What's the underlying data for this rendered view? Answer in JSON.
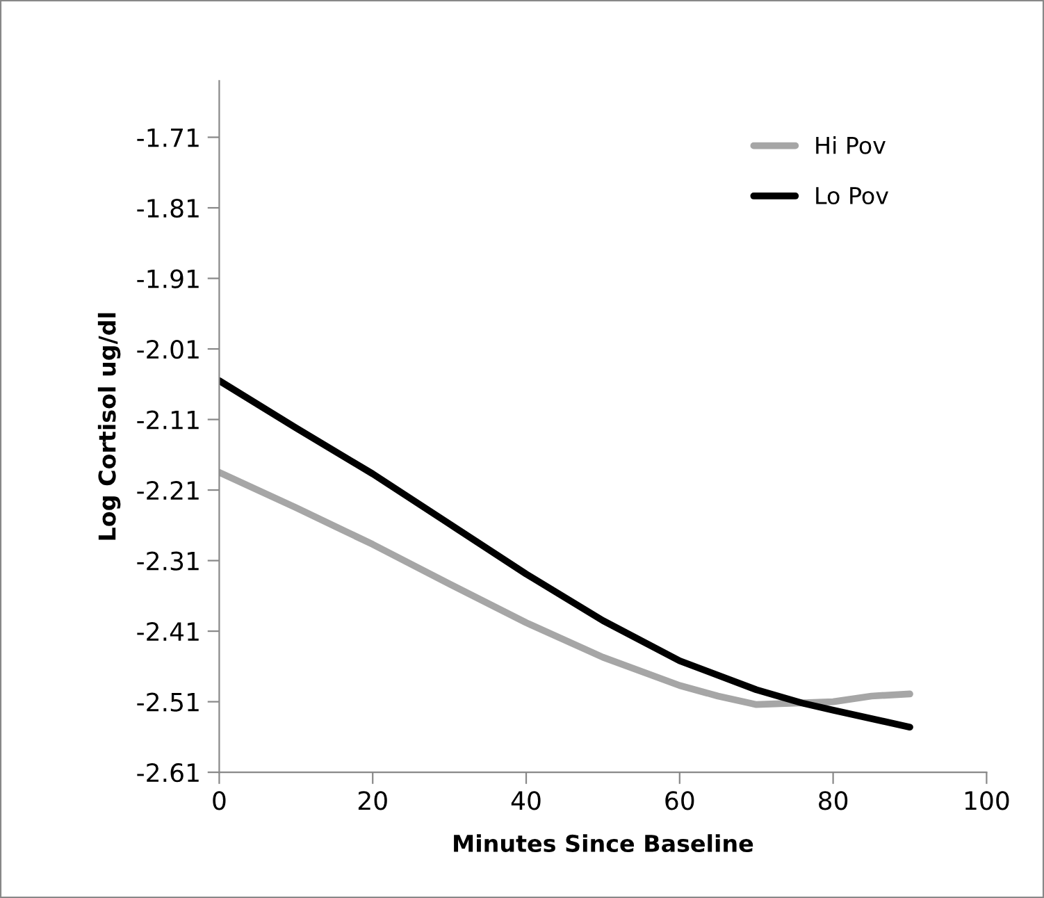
{
  "chart_data": {
    "type": "line",
    "xlabel": "Minutes Since Baseline",
    "ylabel": "Log Cortisol ug/dl",
    "xlim": [
      0,
      100
    ],
    "xticks": [
      0,
      20,
      40,
      60,
      80,
      100
    ],
    "ylim": [
      -2.61,
      -1.63
    ],
    "yticks": [
      -2.61,
      -2.51,
      -2.41,
      -2.31,
      -2.21,
      -2.11,
      -2.01,
      -1.91,
      -1.81,
      -1.71
    ],
    "grid": false,
    "legend": "top right",
    "marker": "none",
    "line_style": "solid",
    "series": [
      {
        "name": "Hi Pov",
        "color": "#a6a6a6",
        "x": [
          0,
          10,
          20,
          30,
          40,
          50,
          60,
          65,
          70,
          80,
          85,
          90
        ],
        "values": [
          -2.185,
          -2.235,
          -2.287,
          -2.343,
          -2.398,
          -2.447,
          -2.487,
          -2.502,
          -2.514,
          -2.51,
          -2.502,
          -2.499
        ]
      },
      {
        "name": "Lo Pov",
        "color": "#000000",
        "x": [
          0,
          10,
          20,
          30,
          40,
          50,
          60,
          70,
          76,
          80,
          90
        ],
        "values": [
          -2.055,
          -2.122,
          -2.187,
          -2.258,
          -2.329,
          -2.395,
          -2.452,
          -2.493,
          -2.512,
          -2.522,
          -2.546
        ]
      }
    ]
  }
}
